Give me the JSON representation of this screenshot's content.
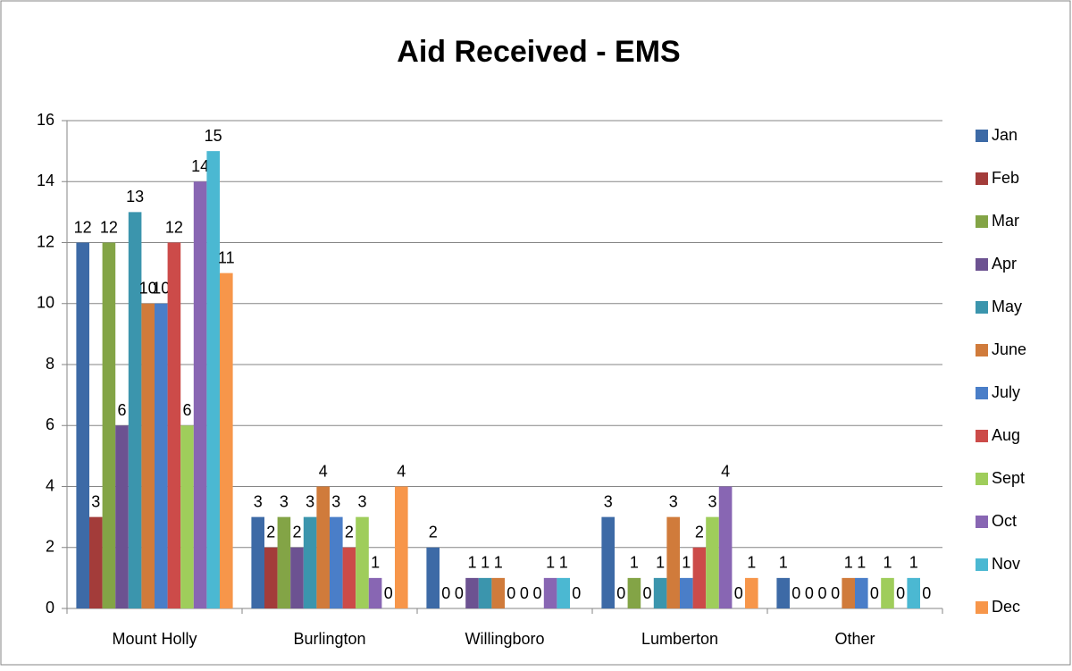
{
  "chart_data": {
    "type": "bar",
    "title": "Aid Received - EMS",
    "categories": [
      "Mount Holly",
      "Burlington",
      "Willingboro",
      "Lumberton",
      "Other"
    ],
    "ylim": [
      0,
      16
    ],
    "yticks": [
      0,
      2,
      4,
      6,
      8,
      10,
      12,
      14,
      16
    ],
    "grid": true,
    "legend": "right",
    "series": [
      {
        "name": "Jan",
        "color": "#3d6aa6",
        "values": [
          12,
          3,
          2,
          3,
          1
        ]
      },
      {
        "name": "Feb",
        "color": "#a33c3a",
        "values": [
          3,
          2,
          0,
          0,
          0
        ]
      },
      {
        "name": "Mar",
        "color": "#83a446",
        "values": [
          12,
          3,
          0,
          1,
          0
        ]
      },
      {
        "name": "Apr",
        "color": "#6c5291",
        "values": [
          6,
          2,
          1,
          0,
          0
        ]
      },
      {
        "name": "May",
        "color": "#3b95ad",
        "values": [
          13,
          3,
          1,
          1,
          0
        ]
      },
      {
        "name": "June",
        "color": "#d07b3b",
        "values": [
          10,
          4,
          1,
          3,
          1
        ]
      },
      {
        "name": "July",
        "color": "#4a7ec8",
        "values": [
          10,
          3,
          0,
          1,
          1
        ]
      },
      {
        "name": "Aug",
        "color": "#cc4b49",
        "values": [
          12,
          2,
          0,
          2,
          0
        ]
      },
      {
        "name": "Sept",
        "color": "#9fcd5b",
        "values": [
          6,
          3,
          0,
          3,
          1
        ]
      },
      {
        "name": "Oct",
        "color": "#8866b3",
        "values": [
          14,
          1,
          1,
          4,
          0
        ]
      },
      {
        "name": "Nov",
        "color": "#4bb8d2",
        "values": [
          15,
          0,
          1,
          0,
          1
        ]
      },
      {
        "name": "Dec",
        "color": "#f7964a",
        "values": [
          11,
          4,
          0,
          1,
          0
        ]
      }
    ]
  }
}
